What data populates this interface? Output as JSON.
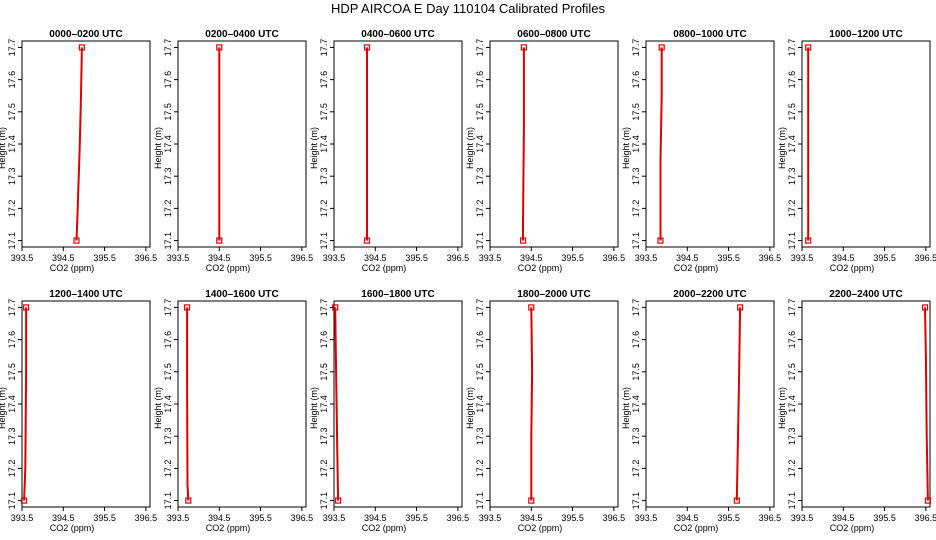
{
  "title": "HDP AIRCOA E  Day 110104  Calibrated Profiles",
  "colors": {
    "series": "#dd0000",
    "axis": "#000000",
    "background": "#ffffff"
  },
  "chart_data": {
    "type": "line",
    "layout": "grid 2 rows x 6 columns",
    "xlabel": "CO2 (ppm)",
    "ylabel": "Height (m)",
    "xlim": [
      393.5,
      396.6
    ],
    "ylim": [
      17.08,
      17.72
    ],
    "xticks": [
      393.5,
      394.5,
      395.5,
      396.5
    ],
    "xtick_labels": [
      "393.5",
      "394.5",
      "395.5",
      "396.5"
    ],
    "yticks": [
      17.1,
      17.2,
      17.3,
      17.4,
      17.5,
      17.6,
      17.7
    ],
    "ytick_labels": [
      "17.1",
      "17.2",
      "17.3",
      "17.4",
      "17.5",
      "17.6",
      "17.7"
    ],
    "panels": [
      {
        "title": "0000–0200 UTC",
        "xlim": [
          393.5,
          396.6
        ],
        "points": [
          [
            394.82,
            17.1
          ],
          [
            394.85,
            17.2
          ],
          [
            394.9,
            17.4
          ],
          [
            394.93,
            17.55
          ],
          [
            394.95,
            17.7
          ]
        ]
      },
      {
        "title": "0200–0400 UTC",
        "xlim": [
          393.5,
          396.6
        ],
        "points": [
          [
            394.5,
            17.1
          ],
          [
            394.5,
            17.3
          ],
          [
            394.5,
            17.5
          ],
          [
            394.5,
            17.7
          ]
        ]
      },
      {
        "title": "0400–0600 UTC",
        "xlim": [
          393.5,
          396.6
        ],
        "points": [
          [
            394.3,
            17.1
          ],
          [
            394.3,
            17.2
          ],
          [
            394.3,
            17.5
          ],
          [
            394.3,
            17.7
          ]
        ]
      },
      {
        "title": "0600–0800 UTC",
        "xlim": [
          393.5,
          396.6
        ],
        "points": [
          [
            394.3,
            17.1
          ],
          [
            394.3,
            17.15
          ],
          [
            394.32,
            17.45
          ],
          [
            394.32,
            17.7
          ]
        ]
      },
      {
        "title": "0800–1000 UTC",
        "xlim": [
          393.5,
          396.6
        ],
        "points": [
          [
            393.85,
            17.1
          ],
          [
            393.85,
            17.35
          ],
          [
            393.88,
            17.55
          ],
          [
            393.88,
            17.7
          ]
        ]
      },
      {
        "title": "1000–1200 UTC",
        "xlim": [
          393.5,
          396.6
        ],
        "points": [
          [
            393.65,
            17.1
          ],
          [
            393.65,
            17.15
          ],
          [
            393.65,
            17.6
          ],
          [
            393.65,
            17.7
          ]
        ]
      },
      {
        "title": "1200–1400 UTC",
        "xlim": [
          393.5,
          396.6
        ],
        "points": [
          [
            393.55,
            17.1
          ],
          [
            393.58,
            17.2
          ],
          [
            393.6,
            17.5
          ],
          [
            393.6,
            17.7
          ]
        ]
      },
      {
        "title": "1400–1600 UTC",
        "xlim": [
          393.5,
          396.6
        ],
        "points": [
          [
            393.75,
            17.1
          ],
          [
            393.73,
            17.15
          ],
          [
            393.72,
            17.45
          ],
          [
            393.72,
            17.7
          ]
        ]
      },
      {
        "title": "1600–1800 UTC",
        "xlim": [
          393.5,
          396.6
        ],
        "points": [
          [
            393.6,
            17.1
          ],
          [
            393.58,
            17.25
          ],
          [
            393.55,
            17.5
          ],
          [
            393.53,
            17.7
          ]
        ]
      },
      {
        "title": "1800–2000 UTC",
        "xlim": [
          393.5,
          396.6
        ],
        "points": [
          [
            394.5,
            17.1
          ],
          [
            394.5,
            17.3
          ],
          [
            394.52,
            17.5
          ],
          [
            394.5,
            17.7
          ]
        ]
      },
      {
        "title": "2000–2200 UTC",
        "xlim": [
          393.5,
          396.6
        ],
        "points": [
          [
            395.7,
            17.1
          ],
          [
            395.72,
            17.25
          ],
          [
            395.75,
            17.45
          ],
          [
            395.78,
            17.7
          ]
        ]
      },
      {
        "title": "2200–2400 UTC",
        "xlim": [
          393.5,
          396.6
        ],
        "points": [
          [
            396.55,
            17.1
          ],
          [
            396.52,
            17.3
          ],
          [
            396.5,
            17.55
          ],
          [
            396.48,
            17.7
          ]
        ]
      }
    ]
  }
}
